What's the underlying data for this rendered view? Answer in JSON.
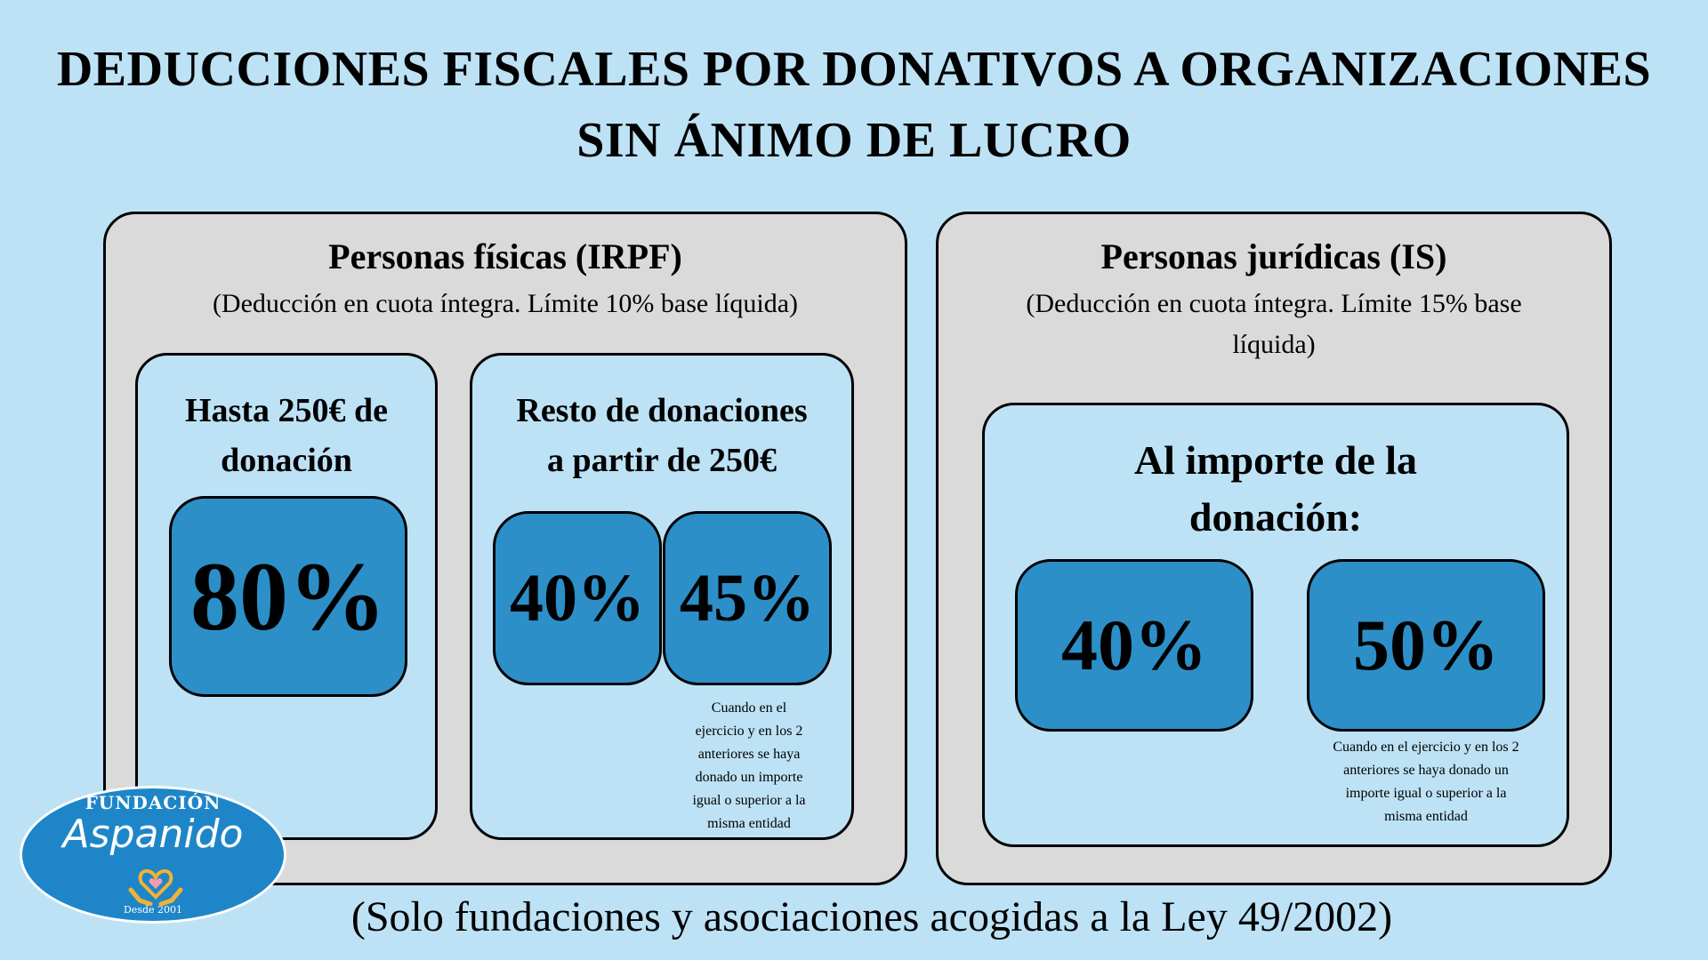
{
  "title_line1": "DEDUCCIONES FISCALES POR DONATIVOS A ORGANIZACIONES",
  "title_line2": "SIN ÁNIMO DE LUCRO",
  "irpf": {
    "title": "Personas físicas (IRPF)",
    "subtitle": "(Deducción en cuota íntegra. Límite 10% base líquida)",
    "box1": {
      "title_line1": "Hasta 250€ de",
      "title_line2": "donación",
      "percent": "80%"
    },
    "box2": {
      "title_line1": "Resto de donaciones",
      "title_line2": "a partir de 250€",
      "percent_a": "40%",
      "percent_b": "45%",
      "note_lines": [
        "Cuando en el",
        "ejercicio y en los 2",
        "anteriores se haya",
        "donado un importe",
        "igual o superior a la",
        "misma entidad"
      ]
    }
  },
  "is": {
    "title": "Personas jurídicas (IS)",
    "subtitle_line1": "(Deducción en cuota íntegra. Límite 15% base",
    "subtitle_line2": "líquida)",
    "box": {
      "title_line1": "Al importe de la",
      "title_line2": "donación:",
      "percent_a": "40%",
      "percent_b": "50%",
      "note_lines": [
        "Cuando en el ejercicio y en los 2",
        "anteriores se haya donado un",
        "importe igual o superior a la",
        "misma entidad"
      ]
    }
  },
  "footer": "(Solo fundaciones y asociaciones acogidas a la Ley 49/2002)",
  "logo": {
    "top": "FUNDACIÓN",
    "name": "Aspanido",
    "since": "Desde 2001"
  },
  "colors": {
    "background": "#bde2f5",
    "panel": "#dadada",
    "percent_box": "#2c8fc8",
    "logo": "#1e86c8"
  }
}
